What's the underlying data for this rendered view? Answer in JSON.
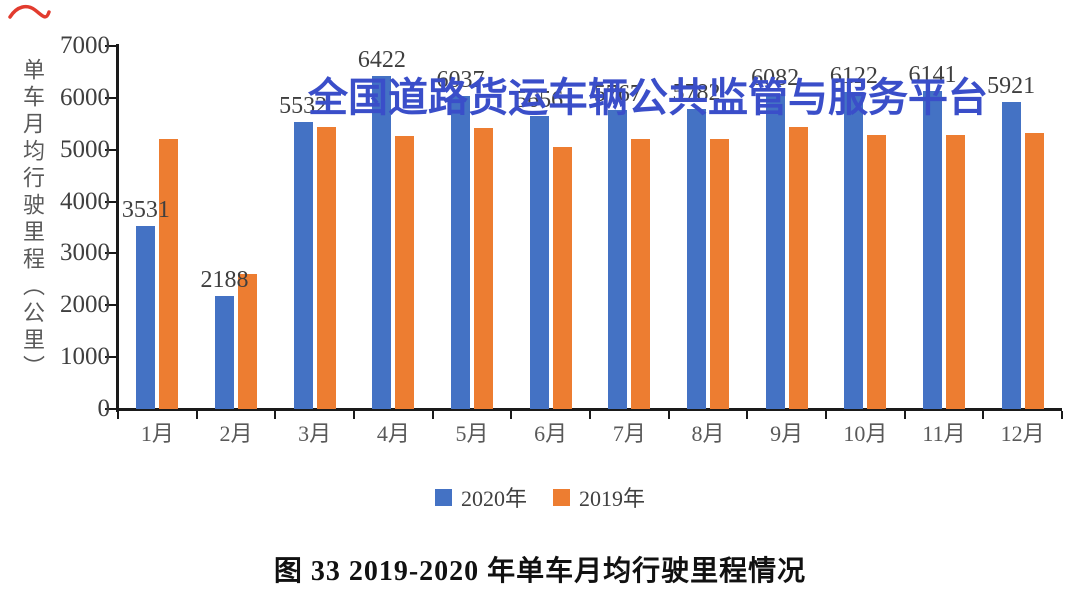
{
  "watermark": {
    "text": "全国道路货运车辆公共监管与服务平台",
    "color": "#3a4ec9"
  },
  "caption": {
    "text": "图 33  2019-2020 年单车月均行驶里程情况"
  },
  "decor": {
    "red_pen_mark_color": "#e23b2e"
  },
  "chart_data": {
    "type": "bar",
    "title": "",
    "xlabel": "",
    "ylabel": "单车月均行驶里程（公里）",
    "ylim": [
      0,
      7000
    ],
    "yticks": [
      0,
      1000,
      2000,
      3000,
      4000,
      5000,
      6000,
      7000
    ],
    "grid": false,
    "legend_position": "bottom",
    "categories": [
      "1月",
      "2月",
      "3月",
      "4月",
      "5月",
      "6月",
      "7月",
      "8月",
      "9月",
      "10月",
      "11月",
      "12月"
    ],
    "series": [
      {
        "name": "2020年",
        "color": "#4472C4",
        "data_labels": true,
        "values": [
          3531,
          2188,
          5532,
          6422,
          6037,
          5656,
          5767,
          5782,
          6082,
          6122,
          6141,
          5921
        ]
      },
      {
        "name": "2019年",
        "color": "#ED7D31",
        "data_labels": false,
        "values": [
          5200,
          2600,
          5430,
          5270,
          5420,
          5060,
          5210,
          5200,
          5430,
          5280,
          5290,
          5330
        ]
      }
    ]
  }
}
